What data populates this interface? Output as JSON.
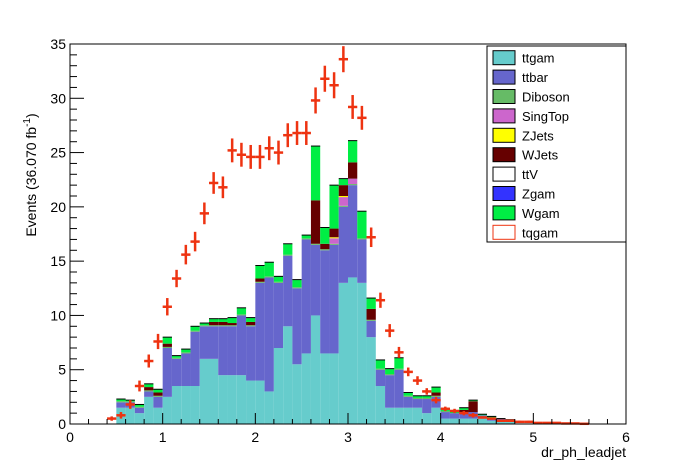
{
  "chart_data": {
    "type": "bar",
    "stacked": true,
    "xlabel": "dr_ph_leadjet",
    "ylabel_prefix": "Events (36.070 fb",
    "ylabel_exp": "-1",
    "ylabel_suffix": ")",
    "xlim": [
      0,
      6
    ],
    "ylim": [
      0,
      35
    ],
    "x_ticks": [
      "0",
      "1",
      "2",
      "3",
      "4",
      "5",
      "6"
    ],
    "y_ticks": [
      "0",
      "5",
      "10",
      "15",
      "20",
      "25",
      "30",
      "35"
    ],
    "legend_position": "top-right",
    "grid": false,
    "bin_width": 0.1,
    "bin_low": [
      0.5,
      0.6,
      0.7,
      0.8,
      0.9,
      1.0,
      1.1,
      1.2,
      1.3,
      1.4,
      1.5,
      1.6,
      1.7,
      1.8,
      1.9,
      2.0,
      2.1,
      2.2,
      2.3,
      2.4,
      2.5,
      2.6,
      2.7,
      2.8,
      2.9,
      3.0,
      3.1,
      3.2,
      3.3,
      3.4,
      3.5,
      3.6,
      3.7,
      3.8,
      3.9,
      4.0,
      4.1,
      4.2,
      4.3,
      4.4,
      4.5,
      4.6,
      4.7
    ],
    "series": [
      {
        "name": "ttgam",
        "color": "#66cccc",
        "values": [
          1.5,
          1.5,
          1.0,
          2.5,
          1.5,
          2.5,
          3.5,
          3.5,
          3.5,
          6.0,
          6.0,
          4.5,
          4.5,
          4.5,
          4.0,
          4.0,
          3.0,
          7.0,
          9.0,
          5.5,
          6.5,
          10.0,
          6.5,
          6.5,
          13.0,
          13.5,
          13.0,
          8.0,
          3.5,
          1.5,
          1.5,
          1.5,
          1.5,
          1.0,
          1.5,
          0.5,
          0.5,
          0.5,
          0.5,
          0.5,
          0.3,
          0.3,
          0.2
        ]
      },
      {
        "name": "ttbar",
        "color": "#6666cc",
        "values": [
          0.5,
          0.5,
          0.5,
          0.5,
          1.0,
          4.5,
          2.5,
          3.0,
          5.0,
          3.0,
          3.0,
          4.5,
          4.5,
          5.5,
          5.0,
          9.0,
          10.5,
          6.0,
          6.5,
          7.0,
          10.5,
          6.5,
          9.5,
          10.0,
          7.0,
          8.5,
          4.0,
          1.5,
          1.5,
          3.0,
          3.5,
          1.0,
          0.8,
          1.3,
          1.0,
          0.6,
          0.5,
          0.5,
          0.6,
          0.3,
          0.3,
          0.2,
          0.2
        ]
      },
      {
        "name": "Diboson",
        "color": "#66bb66",
        "values": [
          0.1,
          0.1,
          0.1,
          0.1,
          0.1,
          0.1,
          0.1,
          0.1,
          0.1,
          0.1,
          0.1,
          0.1,
          0.1,
          0.1,
          0.1,
          0.1,
          0.1,
          0.1,
          0.1,
          0.1,
          0.1,
          0.1,
          0.1,
          0.1,
          0.1,
          0.1,
          0.1,
          0.1,
          0.1,
          0.1,
          0.1,
          0.1,
          0.1,
          0.1,
          0.1,
          0.1,
          0.0,
          0.0,
          0.0,
          0.0,
          0.0,
          0.0,
          0.0
        ]
      },
      {
        "name": "SingTop",
        "color": "#cc66cc",
        "values": [
          0.0,
          0.0,
          0.0,
          0.0,
          0.0,
          0.0,
          0.0,
          0.0,
          0.0,
          0.0,
          0.0,
          0.0,
          0.0,
          0.0,
          0.0,
          0.0,
          0.0,
          0.0,
          0.0,
          0.0,
          0.0,
          0.0,
          0.0,
          0.5,
          0.8,
          0.5,
          0.0,
          0.0,
          0.0,
          0.0,
          0.0,
          0.0,
          0.0,
          0.0,
          0.0,
          0.0,
          0.0,
          0.0,
          0.0,
          0.0,
          0.0,
          0.0,
          0.0
        ]
      },
      {
        "name": "ZJets",
        "color": "#ffff00",
        "values": [
          0.0,
          0.0,
          0.0,
          0.0,
          0.0,
          0.0,
          0.0,
          0.0,
          0.0,
          0.0,
          0.0,
          0.0,
          0.0,
          0.0,
          0.0,
          0.0,
          0.0,
          0.0,
          0.0,
          0.0,
          0.0,
          0.0,
          0.0,
          0.1,
          0.1,
          0.0,
          0.0,
          0.0,
          0.0,
          0.0,
          0.0,
          0.0,
          0.0,
          0.0,
          0.0,
          0.0,
          0.0,
          0.0,
          0.0,
          0.0,
          0.0,
          0.0,
          0.0
        ]
      },
      {
        "name": "WJets",
        "color": "#660000",
        "values": [
          0.0,
          0.0,
          0.0,
          0.3,
          0.3,
          0.3,
          0.0,
          0.0,
          0.0,
          0.0,
          0.3,
          0.3,
          0.2,
          0.0,
          0.3,
          0.3,
          0.0,
          0.0,
          0.0,
          0.0,
          0.0,
          4.0,
          0.5,
          0.8,
          1.0,
          1.5,
          0.0,
          1.0,
          0.0,
          0.0,
          0.0,
          0.0,
          0.0,
          0.0,
          0.3,
          0.0,
          0.0,
          0.3,
          1.0,
          0.0,
          0.0,
          0.0,
          0.0
        ]
      },
      {
        "name": "ttV",
        "color": "#ffffff",
        "values": [
          0.0,
          0.0,
          0.0,
          0.0,
          0.0,
          0.0,
          0.0,
          0.0,
          0.0,
          0.0,
          0.0,
          0.0,
          0.0,
          0.0,
          0.0,
          0.0,
          0.0,
          0.0,
          0.0,
          0.0,
          0.0,
          0.0,
          0.0,
          0.0,
          0.0,
          0.0,
          0.0,
          0.0,
          0.0,
          0.0,
          0.0,
          0.0,
          0.0,
          0.0,
          0.0,
          0.0,
          0.0,
          0.0,
          0.0,
          0.0,
          0.0,
          0.0,
          0.0
        ]
      },
      {
        "name": "Zgam",
        "color": "#3333ff",
        "values": [
          0.0,
          0.0,
          0.0,
          0.0,
          0.0,
          0.0,
          0.0,
          0.0,
          0.0,
          0.0,
          0.0,
          0.0,
          0.0,
          0.0,
          0.0,
          0.0,
          0.0,
          0.0,
          0.0,
          0.0,
          0.0,
          0.0,
          0.0,
          0.0,
          0.0,
          0.0,
          0.0,
          0.0,
          0.0,
          0.0,
          0.0,
          0.0,
          0.0,
          0.0,
          0.0,
          0.0,
          0.0,
          0.0,
          0.0,
          0.0,
          0.0,
          0.0,
          0.0
        ]
      },
      {
        "name": "Wgam",
        "color": "#00ee44",
        "values": [
          0.2,
          0.1,
          0.2,
          0.3,
          0.3,
          0.6,
          0.2,
          0.3,
          0.4,
          0.2,
          0.3,
          0.3,
          0.5,
          0.6,
          0.4,
          1.2,
          1.3,
          0.5,
          1.0,
          0.7,
          0.3,
          5.0,
          1.5,
          4.0,
          0.6,
          2.0,
          2.5,
          1.0,
          0.8,
          0.5,
          1.0,
          0.3,
          0.2,
          0.2,
          0.5,
          0.2,
          0.2,
          0.2,
          0.1,
          0.1,
          0.1,
          0.0,
          0.0
        ]
      }
    ],
    "data_series": {
      "name": "tqgam",
      "color": "#ee3311",
      "x": [
        0.45,
        0.55,
        0.65,
        0.75,
        0.85,
        0.95,
        1.05,
        1.15,
        1.25,
        1.35,
        1.45,
        1.55,
        1.65,
        1.75,
        1.85,
        1.95,
        2.05,
        2.15,
        2.25,
        2.35,
        2.45,
        2.55,
        2.65,
        2.75,
        2.85,
        2.95,
        3.05,
        3.15,
        3.25,
        3.35,
        3.45,
        3.55,
        3.65,
        3.75,
        3.85,
        3.95,
        4.05,
        4.15,
        4.25,
        4.35,
        4.45,
        4.55,
        4.65,
        4.75,
        4.85,
        4.95,
        5.05,
        5.15,
        5.25,
        5.35,
        5.45,
        5.55
      ],
      "y": [
        0.5,
        0.8,
        1.8,
        3.5,
        5.8,
        7.6,
        10.8,
        13.4,
        15.6,
        16.8,
        19.4,
        22.2,
        21.8,
        25.2,
        24.8,
        24.6,
        24.6,
        25.4,
        25.0,
        26.6,
        26.8,
        26.8,
        29.8,
        31.8,
        31.2,
        33.6,
        29.2,
        28.2,
        17.2,
        11.4,
        8.6,
        6.6,
        4.8,
        4.0,
        3.0,
        2.2,
        1.4,
        1.2,
        1.0,
        0.8,
        0.6,
        0.5,
        0.3,
        0.3,
        0.2,
        0.2,
        0.1,
        0.1,
        0.1,
        0.05,
        0.05,
        0.02
      ],
      "yerr": [
        0.2,
        0.3,
        0.4,
        0.5,
        0.6,
        0.7,
        0.8,
        0.8,
        0.9,
        0.9,
        1.0,
        1.0,
        1.0,
        1.1,
        1.1,
        1.1,
        1.1,
        1.1,
        1.1,
        1.1,
        1.1,
        1.1,
        1.2,
        1.2,
        1.2,
        1.2,
        1.1,
        1.1,
        0.9,
        0.7,
        0.6,
        0.5,
        0.4,
        0.4,
        0.3,
        0.3,
        0.2,
        0.2,
        0.2,
        0.2,
        0.1,
        0.1,
        0.1,
        0.1,
        0.1,
        0.1,
        0.05,
        0.05,
        0.05,
        0.03,
        0.03,
        0.02
      ]
    }
  }
}
